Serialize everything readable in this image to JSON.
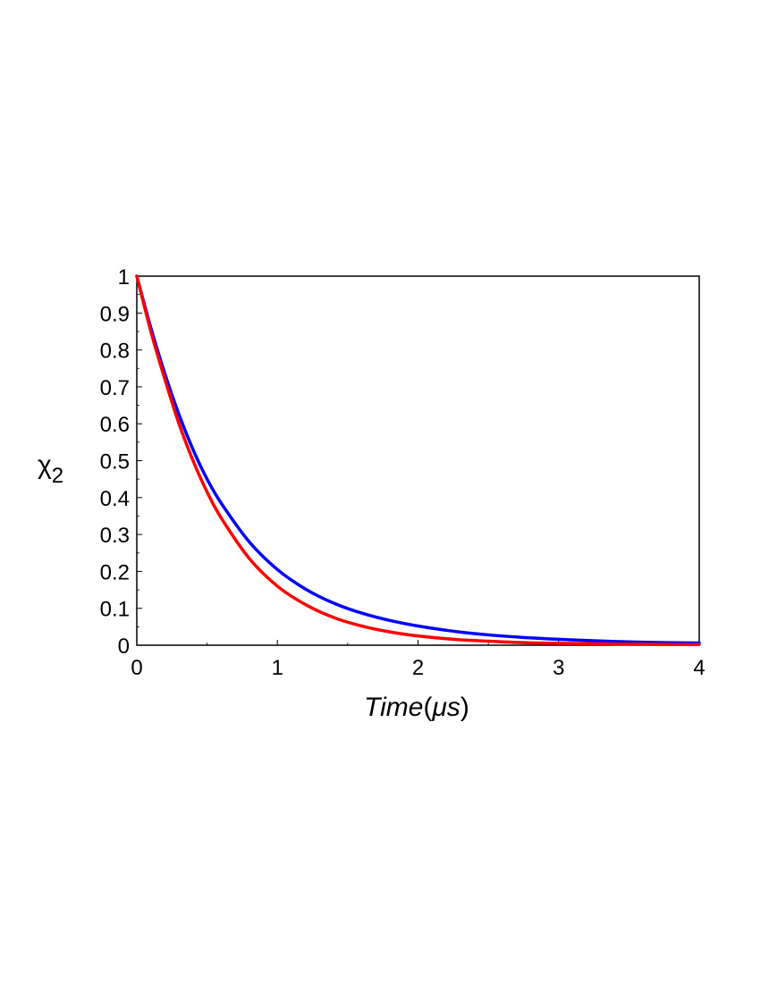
{
  "chart_data": {
    "type": "line",
    "title": "",
    "xlabel": {
      "var": "Time",
      "open": "(",
      "unit": "μs",
      "close": ")"
    },
    "ylabel": {
      "symbol": "χ",
      "subscript": "2"
    },
    "xlim": [
      0,
      4
    ],
    "ylim": [
      0,
      1
    ],
    "xticks": [
      0,
      1,
      2,
      3,
      4
    ],
    "yticks": [
      0,
      0.1,
      0.2,
      0.3,
      0.4,
      0.5,
      0.6,
      0.7,
      0.8,
      0.9,
      1
    ],
    "xtick_labels": [
      "0",
      "1",
      "2",
      "3",
      "4"
    ],
    "ytick_labels": [
      "0",
      "0.1",
      "0.2",
      "0.3",
      "0.4",
      "0.5",
      "0.6",
      "0.7",
      "0.8",
      "0.9",
      "1"
    ],
    "grid": false,
    "legend": "none",
    "series": [
      {
        "color": "#0000ff",
        "x": [
          0,
          0.1,
          0.2,
          0.3,
          0.4,
          0.5,
          0.6,
          0.8,
          1.0,
          1.2,
          1.4,
          1.6,
          1.8,
          2.0,
          2.25,
          2.5,
          2.75,
          3.0,
          3.25,
          3.5,
          3.75,
          4.0
        ],
        "y": [
          1.0,
          0.86,
          0.735,
          0.625,
          0.53,
          0.45,
          0.385,
          0.28,
          0.205,
          0.152,
          0.114,
          0.087,
          0.067,
          0.052,
          0.038,
          0.028,
          0.021,
          0.016,
          0.012,
          0.009,
          0.007,
          0.006
        ]
      },
      {
        "color": "#ff0000",
        "x": [
          0,
          0.1,
          0.2,
          0.3,
          0.4,
          0.5,
          0.6,
          0.8,
          1.0,
          1.2,
          1.4,
          1.6,
          1.8,
          2.0,
          2.25,
          2.5,
          2.75,
          3.0,
          3.25,
          3.5,
          3.75,
          4.0
        ],
        "y": [
          1.0,
          0.85,
          0.72,
          0.6,
          0.5,
          0.415,
          0.345,
          0.235,
          0.16,
          0.11,
          0.075,
          0.052,
          0.036,
          0.025,
          0.016,
          0.011,
          0.007,
          0.005,
          0.004,
          0.003,
          0.002,
          0.002
        ]
      }
    ]
  }
}
